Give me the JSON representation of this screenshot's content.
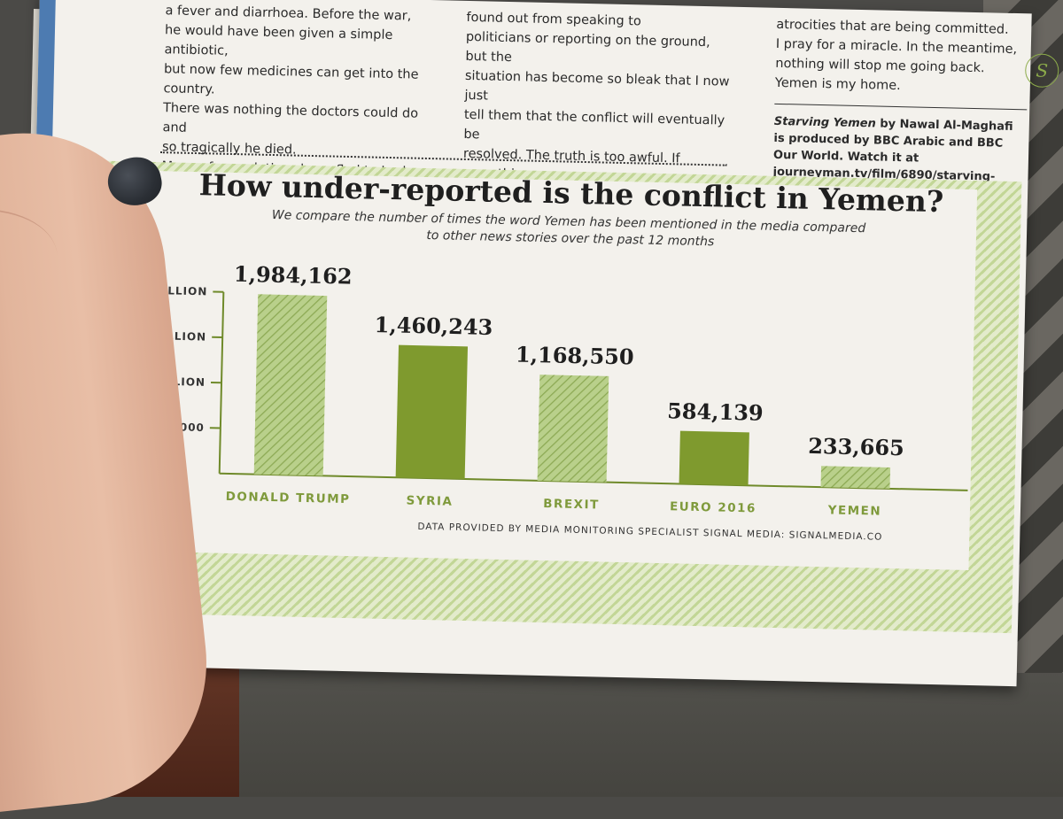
{
  "article": {
    "col1_text": "a fever and diarrhoea. Before the war,\nhe would have been given a simple antibiotic,\nbut now few medicines can get into the country.\nThere was nothing the doctors could do and\nso tragically he died.\n    Many of my relatives have fled to Jordan,\nGermany or the UK. But others will never\nleave Yemen – they are willing to die there.",
    "col2_text": "found out from speaking to\npoliticians or reporting on the ground, but the\nsituation has become so bleak that I now just\ntell them that the conflict will eventually be\nresolved. The truth is too awful. If something\nisn't done soon, the government could collapse\nand lawlessness could take over. Jean-Michel\nGrand, Action Against Hunger's executive\ndirector, has warned that Yemen is at risk of",
    "col3_text": "atrocities that are being committed.\nI pray for a miracle. In the meantime,\nnothing will stop me going back.\nYemen is my home.",
    "credit_title": "Starving Yemen",
    "credit_text": " by Nawal Al-Maghafi is produced by BBC Arabic and BBC Our World. Watch it at journeyman.tv/film/6890/starving-yemen. Donate to the Yemen Crisis Appeal through the Red Cross at redcross.org.uk",
    "logo_letter": "S"
  },
  "colors": {
    "bar_light": "#a8c47a",
    "bar_dark": "#7f9a2e",
    "axis": "#6f8a2a",
    "hatch_light": "#c2d696"
  },
  "chart_data": {
    "type": "bar",
    "title": "How under-reported is the conflict in Yemen?",
    "subtitle": "We compare the number of times the word Yemen has been mentioned in the media compared\nto other news stories over the past 12 months",
    "categories": [
      "DONALD TRUMP",
      "SYRIA",
      "BREXIT",
      "EURO 2016",
      "YEMEN"
    ],
    "values": [
      1984162,
      1460243,
      1168550,
      584139,
      233665
    ],
    "value_labels": [
      "1,984,162",
      "1,460,243",
      "1,168,550",
      "584,139",
      "233,665"
    ],
    "bar_styles": [
      "hatched",
      "solid",
      "hatched",
      "solid",
      "hatched"
    ],
    "y_ticks": [
      500000,
      1000000,
      1500000,
      2000000
    ],
    "y_tick_labels": [
      "500,000",
      "1 MILLION",
      "1.5 MILLION",
      "2 MILLION"
    ],
    "ylim": [
      0,
      2000000
    ],
    "grid": false,
    "source": "DATA PROVIDED BY MEDIA MONITORING SPECIALIST SIGNAL MEDIA: SIGNALMEDIA.CO"
  }
}
